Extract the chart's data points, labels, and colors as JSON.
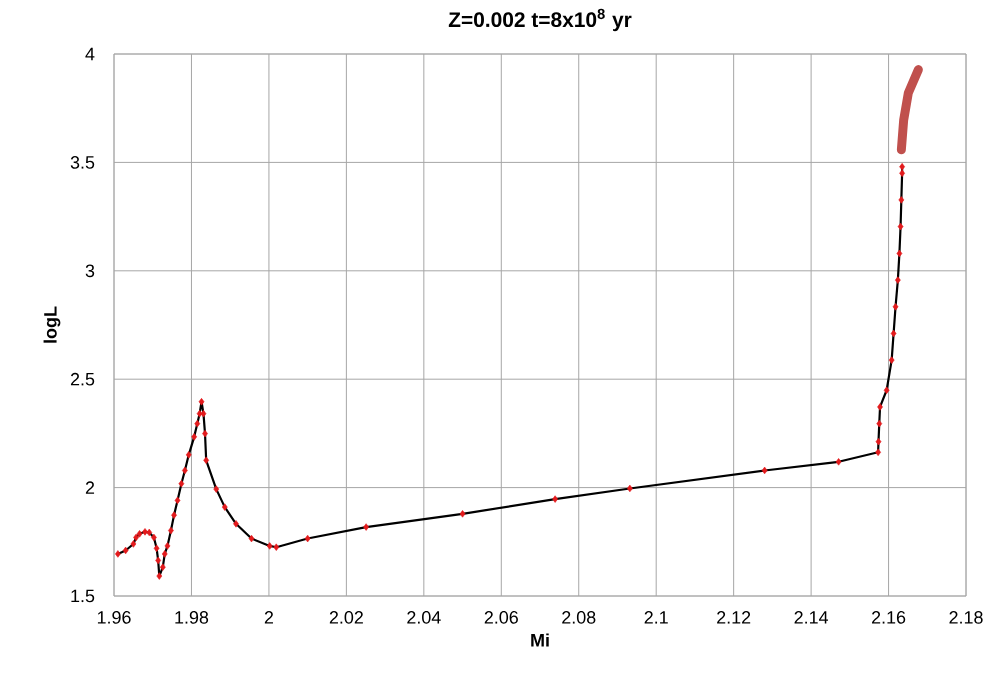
{
  "chart_data": {
    "type": "line",
    "title": "Z=0.002    t=8x10$^{8}$ yr",
    "xlabel": "Mi",
    "ylabel": "logL",
    "xlim": [
      1.96,
      2.18
    ],
    "xticks": [
      1.96,
      1.98,
      2,
      2.02,
      2.04,
      2.06,
      2.08,
      2.1,
      2.12,
      2.14,
      2.16,
      2.18
    ],
    "ylim": [
      1.5,
      4
    ],
    "yticks": [
      1.5,
      2,
      2.5,
      3,
      3.5,
      4
    ],
    "grid": true,
    "marker": "diamond",
    "series": [
      {
        "color": "#e31a1c",
        "x": [
          1.961,
          1.963,
          1.965,
          1.9657,
          1.9666,
          1.968,
          1.9691,
          1.9703,
          1.971,
          1.9714,
          1.9717,
          1.9726,
          1.9731,
          1.9738,
          1.9747,
          1.9755,
          1.9764,
          1.9774,
          1.9783,
          1.9793,
          1.9807,
          1.9815,
          1.9821,
          1.9826,
          1.9831,
          1.9835,
          1.9838,
          1.9864,
          1.9886,
          1.9915,
          1.9955,
          2.0002,
          2.0019,
          2.01,
          2.0251,
          2.05,
          2.0739,
          2.0932,
          2.128,
          2.1471,
          2.1573,
          2.1574,
          2.1576,
          2.1578,
          2.1595,
          2.1608,
          2.1613,
          2.1618,
          2.1624,
          2.1628,
          2.1631,
          2.1633,
          2.1635,
          2.1635
        ],
        "values": [
          1.694,
          1.71,
          1.74,
          1.77,
          1.787,
          1.796,
          1.793,
          1.77,
          1.72,
          1.664,
          1.592,
          1.633,
          1.694,
          1.731,
          1.802,
          1.873,
          1.941,
          2.018,
          2.079,
          2.151,
          2.234,
          2.295,
          2.341,
          2.396,
          2.341,
          2.249,
          2.126,
          1.993,
          1.91,
          1.833,
          1.765,
          1.731,
          1.725,
          1.765,
          1.818,
          1.879,
          1.947,
          1.996,
          2.079,
          2.119,
          2.163,
          2.212,
          2.295,
          2.372,
          2.449,
          2.588,
          2.711,
          2.834,
          2.957,
          3.08,
          3.204,
          3.327,
          3.45,
          3.48
        ]
      },
      {
        "color": "#c0504d",
        "marker": "none",
        "x": [
          2.1633,
          2.1639,
          2.1651,
          2.1677
        ],
        "values": [
          3.558,
          3.695,
          3.82,
          3.928
        ]
      }
    ]
  }
}
